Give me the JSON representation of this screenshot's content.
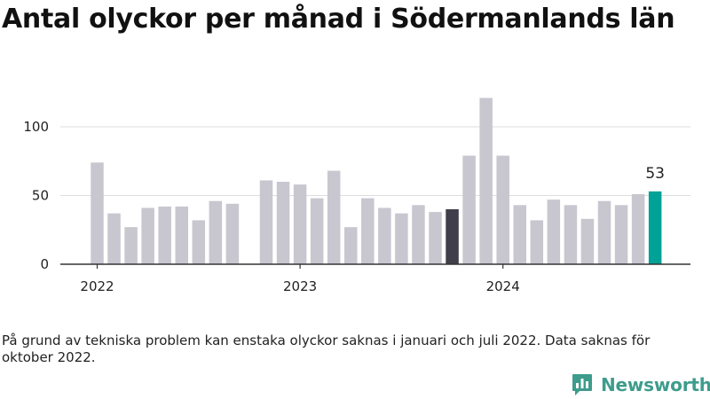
{
  "title": "Antal olyckor per månad i Södermanlands län",
  "note": "På grund av tekniska problem kan enstaka olyckor saknas i januari och juli 2022. Data saknas för oktober 2022.",
  "brand": {
    "name": "Newsworthy",
    "color": "#3e9c8c"
  },
  "colors": {
    "bar": "#c8c7d0",
    "bar_highlight": "#3f3e4a",
    "bar_latest": "#00a196",
    "axis": "#333333",
    "grid": "#dddddd"
  },
  "chart_data": {
    "type": "bar",
    "x": [
      "2022-01",
      "2022-02",
      "2022-03",
      "2022-04",
      "2022-05",
      "2022-06",
      "2022-07",
      "2022-08",
      "2022-09",
      "2022-10",
      "2022-11",
      "2022-12",
      "2023-01",
      "2023-02",
      "2023-03",
      "2023-04",
      "2023-05",
      "2023-06",
      "2023-07",
      "2023-08",
      "2023-09",
      "2023-10",
      "2023-11",
      "2023-12",
      "2024-01",
      "2024-02",
      "2024-03",
      "2024-04",
      "2024-05",
      "2024-06",
      "2024-07",
      "2024-08",
      "2024-09",
      "2024-10"
    ],
    "values": [
      74,
      37,
      27,
      41,
      42,
      42,
      32,
      46,
      44,
      null,
      61,
      60,
      58,
      48,
      68,
      27,
      48,
      41,
      37,
      43,
      38,
      40,
      79,
      121,
      79,
      43,
      32,
      47,
      43,
      33,
      46,
      43,
      51,
      53
    ],
    "highlight": "2023-10",
    "latest": "2024-10",
    "xtick_labels": [
      "2022",
      "2023",
      "2024"
    ],
    "yticks": [
      0,
      50,
      100
    ],
    "ylim": [
      0,
      130
    ],
    "value_label": "53",
    "grid": true
  }
}
